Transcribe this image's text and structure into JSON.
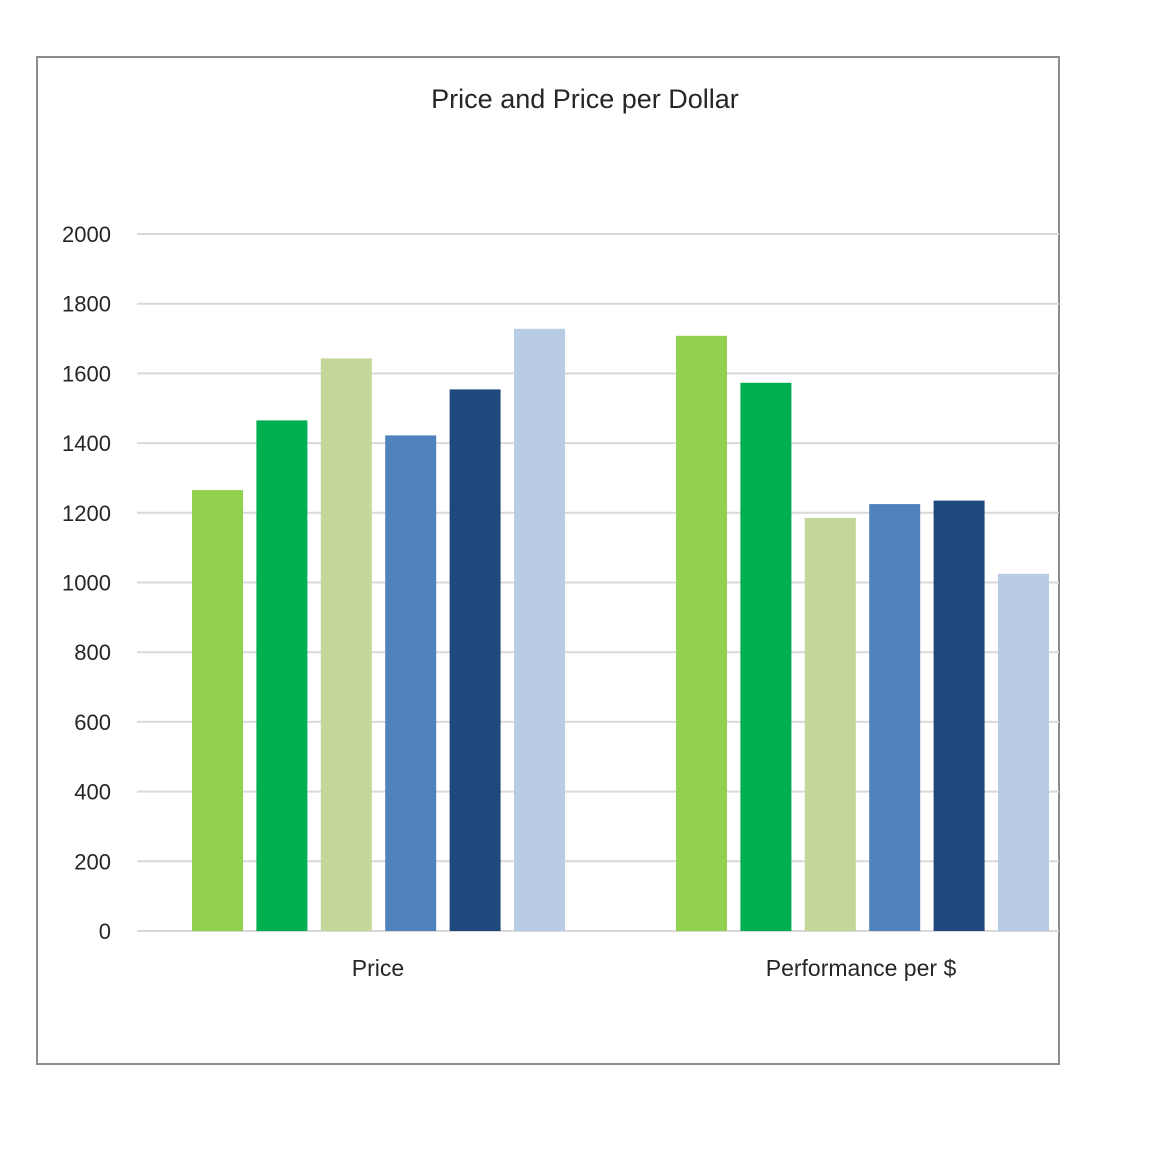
{
  "chart_data": {
    "type": "bar",
    "title": "Price and Price per Dollar",
    "xlabel": "",
    "ylabel": "",
    "categories": [
      "Price",
      "Performance per $"
    ],
    "series": [
      {
        "values": [
          1265,
          1708
        ],
        "color": "#92d050"
      },
      {
        "values": [
          1465,
          1573
        ],
        "color": "#00b050"
      },
      {
        "values": [
          1643,
          1185
        ],
        "color": "#c4d79b"
      },
      {
        "values": [
          1422,
          1225
        ],
        "color": "#4f81bd"
      },
      {
        "values": [
          1554,
          1235
        ],
        "color": "#1f497d"
      },
      {
        "values": [
          1728,
          1025
        ],
        "color": "#b8cce4"
      }
    ],
    "ylim": [
      0,
      2000
    ],
    "yticks": [
      0,
      200,
      400,
      600,
      800,
      1000,
      1200,
      1400,
      1600,
      1800,
      2000
    ],
    "grid": true,
    "legend": "none"
  }
}
